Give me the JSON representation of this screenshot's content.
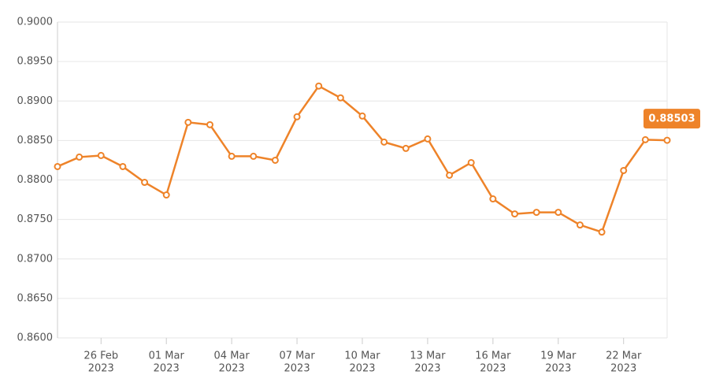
{
  "chart_data": {
    "type": "line",
    "color": "#ee8329",
    "x": [
      "2023-02-24",
      "2023-02-25",
      "2023-02-26",
      "2023-02-27",
      "2023-02-28",
      "2023-03-01",
      "2023-03-02",
      "2023-03-03",
      "2023-03-04",
      "2023-03-05",
      "2023-03-06",
      "2023-03-07",
      "2023-03-08",
      "2023-03-09",
      "2023-03-10",
      "2023-03-11",
      "2023-03-12",
      "2023-03-13",
      "2023-03-14",
      "2023-03-15",
      "2023-03-16",
      "2023-03-17",
      "2023-03-18",
      "2023-03-19",
      "2023-03-20",
      "2023-03-21",
      "2023-03-22",
      "2023-03-23",
      "2023-03-24"
    ],
    "values": [
      0.8817,
      0.8829,
      0.8831,
      0.8817,
      0.8797,
      0.8781,
      0.8873,
      0.887,
      0.883,
      0.883,
      0.8825,
      0.888,
      0.8919,
      0.8904,
      0.8881,
      0.8848,
      0.884,
      0.8852,
      0.8806,
      0.8822,
      0.8776,
      0.8757,
      0.8759,
      0.8759,
      0.8743,
      0.8734,
      0.8812,
      0.8851,
      0.88503
    ],
    "xlim": [
      "2023-02-24",
      "2023-03-24"
    ],
    "xticks": [
      {
        "value": "2023-02-26",
        "label": [
          "26 Feb",
          "2023"
        ]
      },
      {
        "value": "2023-03-01",
        "label": [
          "01 Mar",
          "2023"
        ]
      },
      {
        "value": "2023-03-04",
        "label": [
          "04 Mar",
          "2023"
        ]
      },
      {
        "value": "2023-03-07",
        "label": [
          "07 Mar",
          "2023"
        ]
      },
      {
        "value": "2023-03-10",
        "label": [
          "10 Mar",
          "2023"
        ]
      },
      {
        "value": "2023-03-13",
        "label": [
          "13 Mar",
          "2023"
        ]
      },
      {
        "value": "2023-03-16",
        "label": [
          "16 Mar",
          "2023"
        ]
      },
      {
        "value": "2023-03-19",
        "label": [
          "19 Mar",
          "2023"
        ]
      },
      {
        "value": "2023-03-22",
        "label": [
          "22 Mar",
          "2023"
        ]
      }
    ],
    "ylim": [
      0.86,
      0.9
    ],
    "yticks": [
      {
        "value": 0.86,
        "label": "0.8600"
      },
      {
        "value": 0.865,
        "label": "0.8650"
      },
      {
        "value": 0.87,
        "label": "0.8700"
      },
      {
        "value": 0.875,
        "label": "0.8750"
      },
      {
        "value": 0.88,
        "label": "0.8800"
      },
      {
        "value": 0.885,
        "label": "0.8850"
      },
      {
        "value": 0.89,
        "label": "0.8900"
      },
      {
        "value": 0.895,
        "label": "0.8950"
      },
      {
        "value": 0.9,
        "label": "0.9000"
      }
    ],
    "grid": true
  }
}
